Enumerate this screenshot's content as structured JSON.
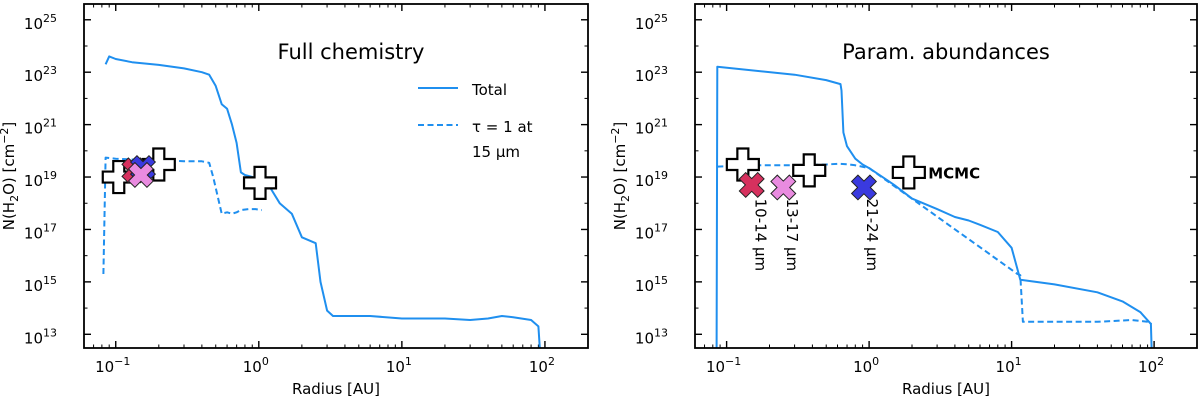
{
  "chart_data": [
    {
      "type": "line",
      "title": "Full chemistry",
      "xlabel": "Radius [AU]",
      "ylabel_prefix": "N(H",
      "ylabel_sub": "2",
      "ylabel_mid": "O) [cm",
      "ylabel_sup": "−2",
      "ylabel_suffix": "]",
      "xscale": "log",
      "yscale": "log",
      "xlim": [
        0.06,
        200
      ],
      "ylim": [
        3000000000000.0,
        4e+25
      ],
      "xticks": [
        {
          "base": "10",
          "exp": "−1",
          "value": 0.1
        },
        {
          "base": "10",
          "exp": "0",
          "value": 1
        },
        {
          "base": "10",
          "exp": "1",
          "value": 10
        },
        {
          "base": "10",
          "exp": "2",
          "value": 100
        }
      ],
      "yticks": [
        {
          "base": "10",
          "exp": "13",
          "value": 10000000000000.0
        },
        {
          "base": "10",
          "exp": "15",
          "value": 1000000000000000.0
        },
        {
          "base": "10",
          "exp": "17",
          "value": 1e+17
        },
        {
          "base": "10",
          "exp": "19",
          "value": 1e+19
        },
        {
          "base": "10",
          "exp": "21",
          "value": 1e+21
        },
        {
          "base": "10",
          "exp": "23",
          "value": 1e+23
        },
        {
          "base": "10",
          "exp": "25",
          "value": 1e+25
        }
      ],
      "legend": {
        "placement": "upper-right",
        "entries": [
          {
            "label_lines": [
              "Total"
            ],
            "style": "solid"
          },
          {
            "label_lines": [
              "τ = 1 at",
              "15 μm"
            ],
            "style": "dashed"
          }
        ]
      },
      "series": [
        {
          "name": "Total",
          "style": "solid",
          "color": "#1f8fef",
          "points": [
            [
              0.085,
              2e+23
            ],
            [
              0.09,
              4e+23
            ],
            [
              0.1,
              3.2e+23
            ],
            [
              0.13,
              2.4e+23
            ],
            [
              0.2,
              1.9e+23
            ],
            [
              0.3,
              1.4e+23
            ],
            [
              0.4,
              1e+23
            ],
            [
              0.45,
              8e+22
            ],
            [
              0.5,
              3e+22
            ],
            [
              0.55,
              6e+21
            ],
            [
              0.6,
              4e+21
            ],
            [
              0.65,
              1e+21
            ],
            [
              0.7,
              2e+20
            ],
            [
              0.75,
              1.5e+19
            ],
            [
              0.8,
              1.2e+19
            ],
            [
              0.9,
              1e+19
            ],
            [
              1.0,
              8e+18
            ],
            [
              1.1,
              6e+18
            ],
            [
              1.2,
              4e+18
            ],
            [
              1.4,
              1e+18
            ],
            [
              1.7,
              4e+17
            ],
            [
              2.0,
              5e+16
            ],
            [
              2.5,
              3e+16
            ],
            [
              2.7,
              1000000000000000.0
            ],
            [
              3.0,
              80000000000000.0
            ],
            [
              3.3,
              50000000000000.0
            ],
            [
              4,
              50000000000000.0
            ],
            [
              6,
              50000000000000.0
            ],
            [
              10,
              40000000000000.0
            ],
            [
              20,
              40000000000000.0
            ],
            [
              30,
              35000000000000.0
            ],
            [
              40,
              40000000000000.0
            ],
            [
              50,
              50000000000000.0
            ],
            [
              60,
              45000000000000.0
            ],
            [
              80,
              35000000000000.0
            ],
            [
              90,
              20000000000000.0
            ],
            [
              92,
              2000000000000.0
            ]
          ]
        },
        {
          "name": "τ = 1 at 15 μm",
          "style": "dashed",
          "color": "#1f8fef",
          "points": [
            [
              0.082,
              2000000000000000.0
            ],
            [
              0.085,
              5.5e+19
            ],
            [
              0.1,
              5e+19
            ],
            [
              0.15,
              4.5e+19
            ],
            [
              0.2,
              4.2e+19
            ],
            [
              0.25,
              4.2e+19
            ],
            [
              0.3,
              4e+19
            ],
            [
              0.4,
              4e+19
            ],
            [
              0.45,
              3.5e+19
            ],
            [
              0.48,
              1e+19
            ],
            [
              0.52,
              1.5e+18
            ],
            [
              0.55,
              4e+17
            ],
            [
              0.6,
              4.5e+17
            ],
            [
              0.65,
              4e+17
            ],
            [
              0.7,
              4.5e+17
            ],
            [
              0.75,
              5.5e+17
            ],
            [
              0.85,
              6e+17
            ],
            [
              0.95,
              6e+17
            ],
            [
              1.05,
              5.5e+17
            ]
          ]
        }
      ],
      "markers": [
        {
          "name": "mcmc-cross-1",
          "x": 0.105,
          "y": 1e+19,
          "shape": "plus",
          "fill": "#ffffff"
        },
        {
          "name": "mcmc-cross-2",
          "x": 0.2,
          "y": 3e+19,
          "shape": "plus",
          "fill": "#ffffff"
        },
        {
          "name": "mcmc-cross-3",
          "x": 1.02,
          "y": 6e+18,
          "shape": "plus",
          "fill": "#ffffff"
        },
        {
          "name": "x-10-14",
          "x": 0.135,
          "y": 1.8e+19,
          "shape": "x",
          "fill": "#d6315e"
        },
        {
          "name": "x-21-24",
          "x": 0.155,
          "y": 2.2e+19,
          "shape": "x",
          "fill": "#3a3adf"
        },
        {
          "name": "x-13-17",
          "x": 0.15,
          "y": 1.2e+19,
          "shape": "x",
          "fill": "#e98be0"
        }
      ],
      "annotations": []
    },
    {
      "type": "line",
      "title": "Param. abundances",
      "xlabel": "Radius [AU]",
      "ylabel_prefix": "N(H",
      "ylabel_sub": "2",
      "ylabel_mid": "O) [cm",
      "ylabel_sup": "−2",
      "ylabel_suffix": "]",
      "xscale": "log",
      "yscale": "log",
      "xlim": [
        0.06,
        200
      ],
      "ylim": [
        3000000000000.0,
        4e+25
      ],
      "xticks": [
        {
          "base": "10",
          "exp": "−1",
          "value": 0.1
        },
        {
          "base": "10",
          "exp": "0",
          "value": 1
        },
        {
          "base": "10",
          "exp": "1",
          "value": 10
        },
        {
          "base": "10",
          "exp": "2",
          "value": 100
        }
      ],
      "yticks": [
        {
          "base": "10",
          "exp": "13",
          "value": 10000000000000.0
        },
        {
          "base": "10",
          "exp": "15",
          "value": 1000000000000000.0
        },
        {
          "base": "10",
          "exp": "17",
          "value": 1e+17
        },
        {
          "base": "10",
          "exp": "19",
          "value": 1e+19
        },
        {
          "base": "10",
          "exp": "21",
          "value": 1e+21
        },
        {
          "base": "10",
          "exp": "23",
          "value": 1e+23
        },
        {
          "base": "10",
          "exp": "25",
          "value": 1e+25
        }
      ],
      "legend": null,
      "series": [
        {
          "name": "Total",
          "style": "solid",
          "color": "#1f8fef",
          "points": [
            [
              0.085,
              1000000000000.0
            ],
            [
              0.086,
              1.6e+23
            ],
            [
              0.3,
              8e+22
            ],
            [
              0.5,
              5e+22
            ],
            [
              0.63,
              3.5e+22
            ],
            [
              0.64,
              2e+22
            ],
            [
              0.66,
              5e+20
            ],
            [
              0.7,
              1.5e+20
            ],
            [
              0.8,
              5e+19
            ],
            [
              0.9,
              3e+19
            ],
            [
              1.0,
              2.2e+19
            ],
            [
              1.5,
              5e+18
            ],
            [
              2,
              1.5e+18
            ],
            [
              3,
              6e+17
            ],
            [
              4,
              3e+17
            ],
            [
              5,
              2.2e+17
            ],
            [
              6,
              1.5e+17
            ],
            [
              8,
              8e+16
            ],
            [
              10,
              2e+16
            ],
            [
              11,
              3000000000000000.0
            ],
            [
              11.5,
              1200000000000000.0
            ],
            [
              20,
              800000000000000.0
            ],
            [
              40,
              400000000000000.0
            ],
            [
              60,
              180000000000000.0
            ],
            [
              80,
              70000000000000.0
            ],
            [
              95,
              25000000000000.0
            ],
            [
              96,
              1000000000000.0
            ]
          ]
        },
        {
          "name": "τ = 1 at 15 μm",
          "style": "dashed",
          "color": "#1f8fef",
          "points": [
            [
              0.086,
              2.5e+19
            ],
            [
              0.15,
              2.8e+19
            ],
            [
              0.3,
              2.8e+19
            ],
            [
              0.5,
              3e+19
            ],
            [
              0.6,
              3.2e+19
            ],
            [
              0.7,
              3.1e+19
            ],
            [
              0.8,
              2.8e+19
            ],
            [
              1.0,
              2.2e+19
            ],
            [
              11,
              2000000000000000.0
            ],
            [
              11.5,
              1800000000000000.0
            ],
            [
              12,
              30000000000000.0
            ],
            [
              20,
              30000000000000.0
            ],
            [
              40,
              30000000000000.0
            ],
            [
              70,
              35000000000000.0
            ],
            [
              90,
              30000000000000.0
            ],
            [
              96,
              25000000000000.0
            ]
          ]
        }
      ],
      "markers": [
        {
          "name": "mcmc-cross-1",
          "x": 0.13,
          "y": 3e+19,
          "shape": "plus",
          "fill": "#ffffff"
        },
        {
          "name": "mcmc-cross-2",
          "x": 0.38,
          "y": 1.8e+19,
          "shape": "plus",
          "fill": "#ffffff"
        },
        {
          "name": "mcmc-cross-3",
          "x": 1.9,
          "y": 1.5e+19,
          "shape": "plus",
          "fill": "#ffffff"
        },
        {
          "name": "x-10-14",
          "x": 0.15,
          "y": 5e+18,
          "shape": "x",
          "fill": "#d6315e"
        },
        {
          "name": "x-13-17",
          "x": 0.25,
          "y": 4e+18,
          "shape": "x",
          "fill": "#e98be0"
        },
        {
          "name": "x-21-24",
          "x": 0.92,
          "y": 4e+18,
          "shape": "x",
          "fill": "#3a3adf"
        }
      ],
      "annotations": [
        {
          "name": "mcmc-label",
          "text": "MCMC",
          "x": 2.6,
          "y": 1.5e+19,
          "color": "#000000",
          "rotate": false,
          "bold": true
        },
        {
          "name": "label-10-14",
          "text": "10-14 μm",
          "x": 0.16,
          "y": 1.5e+18,
          "color": "#d6315e",
          "rotate": true,
          "bold": false
        },
        {
          "name": "label-13-17",
          "text": "13-17 μm",
          "x": 0.265,
          "y": 1.5e+18,
          "color": "#e98be0",
          "rotate": true,
          "bold": false
        },
        {
          "name": "label-21-24",
          "text": "21-24 μm",
          "x": 0.97,
          "y": 1.5e+18,
          "color": "#3a3adf",
          "rotate": true,
          "bold": false
        }
      ]
    }
  ]
}
